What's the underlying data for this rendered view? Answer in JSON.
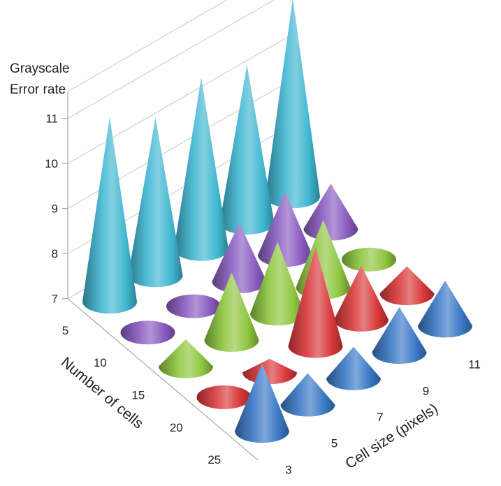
{
  "chart_data": {
    "type": "bar",
    "shape": "3d-cone",
    "z_title": [
      "Grayscale",
      "Error rate"
    ],
    "z_ticks": [
      7,
      8,
      9,
      10,
      11
    ],
    "zlim": [
      7,
      11.6
    ],
    "x_axis_title": "Cell size (pixels)",
    "x_ticks": [
      3,
      5,
      7,
      9,
      11
    ],
    "y_axis_title": "Number of cells",
    "y_ticks": [
      5,
      10,
      15,
      20,
      25
    ],
    "grid": true,
    "series": [
      {
        "name": "5",
        "color": "#3fb6d1",
        "values": [
          11.1,
          10.5,
          10.8,
          10.5,
          11.4
        ]
      },
      {
        "name": "10",
        "color": "#8a5cc0",
        "values": [
          7.0,
          7.0,
          8.3,
          8.4,
          8.0
        ]
      },
      {
        "name": "15",
        "color": "#8ec63f",
        "values": [
          7.6,
          8.5,
          8.6,
          8.5,
          7.0
        ]
      },
      {
        "name": "20",
        "color": "#d9383a",
        "values": [
          7.0,
          7.3,
          9.2,
          8.2,
          7.6
        ]
      },
      {
        "name": "25",
        "color": "#3b79c7",
        "values": [
          8.5,
          7.7,
          7.7,
          8.0,
          8.0
        ]
      }
    ]
  }
}
